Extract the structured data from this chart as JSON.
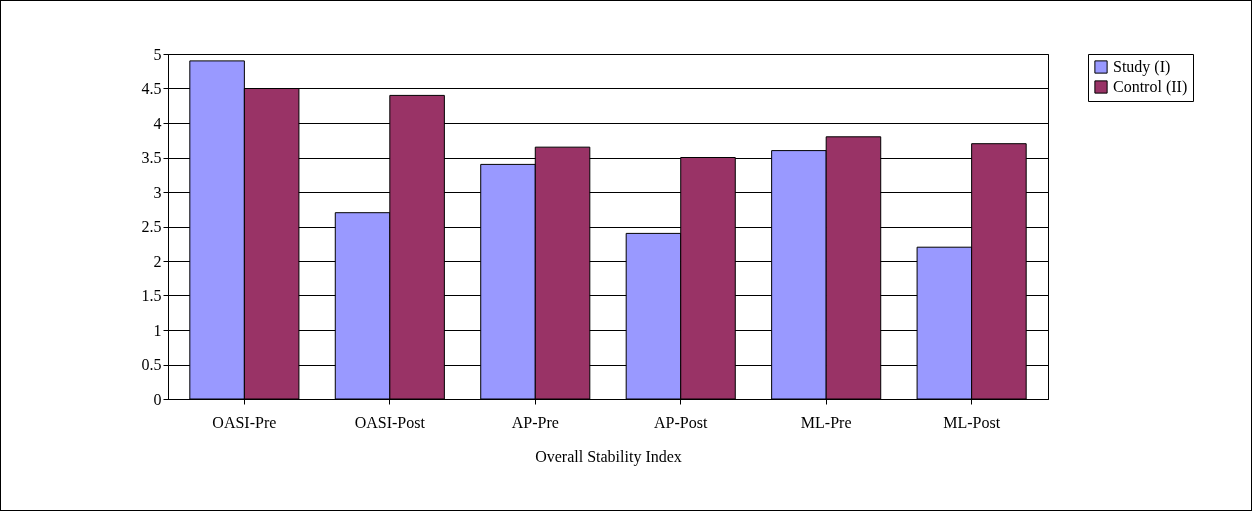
{
  "chart_data": {
    "type": "bar",
    "xlabel": "Overall Stability Index",
    "categories": [
      "OASI-Pre",
      "OASI-Post",
      "AP-Pre",
      "AP-Post",
      "ML-Pre",
      "ML-Post"
    ],
    "series": [
      {
        "name": "Study (I)",
        "color": "#9999ff",
        "values": [
          4.9,
          2.7,
          3.4,
          2.4,
          3.6,
          2.2
        ]
      },
      {
        "name": "Control (II)",
        "color": "#993366",
        "values": [
          4.5,
          4.4,
          3.65,
          3.5,
          3.8,
          3.7
        ]
      }
    ],
    "ylim": [
      0,
      5
    ],
    "yticks": [
      0,
      0.5,
      1,
      1.5,
      2,
      2.5,
      3,
      3.5,
      4,
      4.5,
      5
    ],
    "grid": "y",
    "legend": "top right"
  }
}
